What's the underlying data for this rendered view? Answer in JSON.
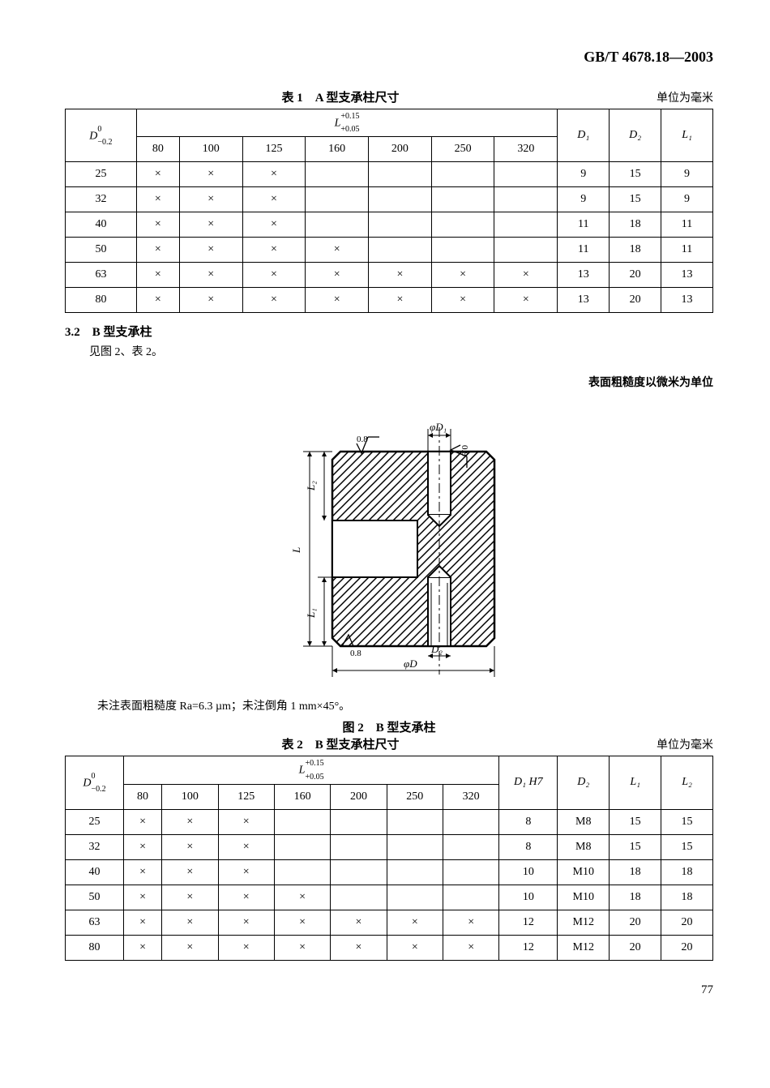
{
  "standard_number": "GB/T 4678.18—2003",
  "table1": {
    "title": "表 1　A 型支承柱尺寸",
    "unit": "单位为毫米",
    "header_D": "D",
    "header_D_tol_upper": "0",
    "header_D_tol_lower": "−0.2",
    "header_L": "L",
    "header_L_tol_upper": "+0.15",
    "header_L_tol_lower": "+0.05",
    "header_D1": "D₁",
    "header_D2": "D₂",
    "header_L1": "L₁",
    "L_cols": [
      "80",
      "100",
      "125",
      "160",
      "200",
      "250",
      "320"
    ],
    "rows": [
      {
        "D": "25",
        "m": [
          "×",
          "×",
          "×",
          "",
          "",
          "",
          ""
        ],
        "D1": "9",
        "D2": "15",
        "L1": "9"
      },
      {
        "D": "32",
        "m": [
          "×",
          "×",
          "×",
          "",
          "",
          "",
          ""
        ],
        "D1": "9",
        "D2": "15",
        "L1": "9"
      },
      {
        "D": "40",
        "m": [
          "×",
          "×",
          "×",
          "",
          "",
          "",
          ""
        ],
        "D1": "11",
        "D2": "18",
        "L1": "11"
      },
      {
        "D": "50",
        "m": [
          "×",
          "×",
          "×",
          "×",
          "",
          "",
          ""
        ],
        "D1": "11",
        "D2": "18",
        "L1": "11"
      },
      {
        "D": "63",
        "m": [
          "×",
          "×",
          "×",
          "×",
          "×",
          "×",
          "×"
        ],
        "D1": "13",
        "D2": "20",
        "L1": "13"
      },
      {
        "D": "80",
        "m": [
          "×",
          "×",
          "×",
          "×",
          "×",
          "×",
          "×"
        ],
        "D1": "13",
        "D2": "20",
        "L1": "13"
      }
    ]
  },
  "section32": "3.2　B 型支承柱",
  "section32_text": "见图 2、表 2。",
  "roughness_note": "表面粗糙度以微米为单位",
  "figure2": {
    "note": "未注表面粗糙度 Ra=6.3 µm；未注倒角 1 mm×45°。",
    "caption": "图 2　B 型支承柱",
    "dim_phiD1": "φD₁",
    "dim_phiD": "φD",
    "dim_D2": "D₂",
    "dim_L": "L",
    "dim_L1": "L₁",
    "dim_L2": "L₂",
    "ra_top": "0.8",
    "ra_side": "0.8",
    "ra_bottom": "0.8",
    "stroke": "#000000",
    "hatch_spacing": 10
  },
  "table2": {
    "title": "表 2　B 型支承柱尺寸",
    "unit": "单位为毫米",
    "header_D": "D",
    "header_D_tol_upper": "0",
    "header_D_tol_lower": "−0.2",
    "header_L": "L",
    "header_L_tol_upper": "+0.15",
    "header_L_tol_lower": "+0.05",
    "header_D1": "D₁ H7",
    "header_D2": "D₂",
    "header_L1": "L₁",
    "header_L2": "L₂",
    "L_cols": [
      "80",
      "100",
      "125",
      "160",
      "200",
      "250",
      "320"
    ],
    "rows": [
      {
        "D": "25",
        "m": [
          "×",
          "×",
          "×",
          "",
          "",
          "",
          ""
        ],
        "D1": "8",
        "D2": "M8",
        "L1": "15",
        "L2": "15"
      },
      {
        "D": "32",
        "m": [
          "×",
          "×",
          "×",
          "",
          "",
          "",
          ""
        ],
        "D1": "8",
        "D2": "M8",
        "L1": "15",
        "L2": "15"
      },
      {
        "D": "40",
        "m": [
          "×",
          "×",
          "×",
          "",
          "",
          "",
          ""
        ],
        "D1": "10",
        "D2": "M10",
        "L1": "18",
        "L2": "18"
      },
      {
        "D": "50",
        "m": [
          "×",
          "×",
          "×",
          "×",
          "",
          "",
          ""
        ],
        "D1": "10",
        "D2": "M10",
        "L1": "18",
        "L2": "18"
      },
      {
        "D": "63",
        "m": [
          "×",
          "×",
          "×",
          "×",
          "×",
          "×",
          "×"
        ],
        "D1": "12",
        "D2": "M12",
        "L1": "20",
        "L2": "20"
      },
      {
        "D": "80",
        "m": [
          "×",
          "×",
          "×",
          "×",
          "×",
          "×",
          "×"
        ],
        "D1": "12",
        "D2": "M12",
        "L1": "20",
        "L2": "20"
      }
    ]
  },
  "page_number": "77"
}
